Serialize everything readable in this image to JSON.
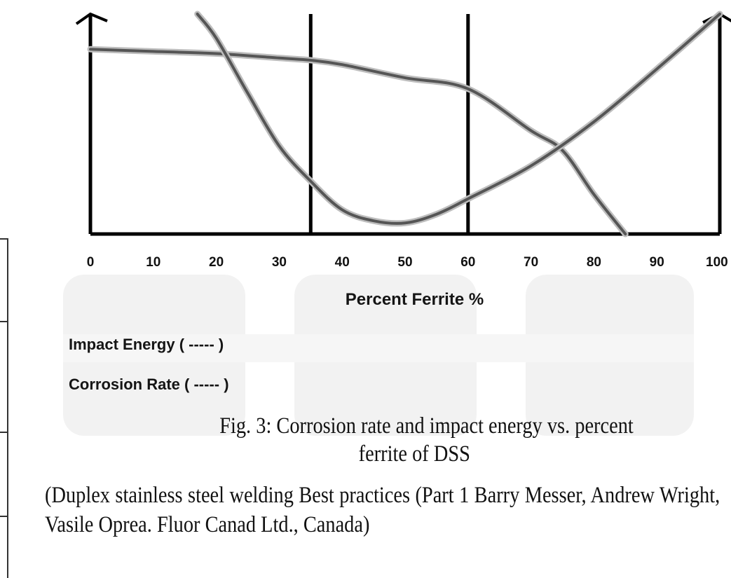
{
  "chart_data": {
    "type": "line",
    "title": "",
    "xlabel": "Percent Ferrite %",
    "ylabel": "",
    "xlim": [
      0,
      100
    ],
    "ylim": [
      0,
      100
    ],
    "x_ticks": [
      "0",
      "10",
      "20",
      "30",
      "40",
      "50",
      "60",
      "70",
      "80",
      "90",
      "100"
    ],
    "grid": false,
    "reference_lines_x": [
      35,
      60
    ],
    "series": [
      {
        "name": "Impact Energy ( ----- )",
        "x": [
          0,
          10,
          20,
          30,
          35,
          40,
          50,
          60,
          70,
          75,
          80,
          85
        ],
        "y": [
          84,
          83,
          82,
          80,
          79,
          77,
          71,
          66,
          47,
          38,
          18,
          0
        ]
      },
      {
        "name": "Corrosion Rate ( ----- )",
        "x": [
          17,
          20,
          25,
          30,
          35,
          40,
          45,
          50,
          55,
          60,
          70,
          80,
          90,
          100
        ],
        "y": [
          100,
          89,
          64,
          40,
          24,
          11,
          6,
          5,
          9,
          16,
          31,
          51,
          75,
          100
        ]
      }
    ],
    "legend": [
      {
        "label": "Impact Energy ( ----- )"
      },
      {
        "label": "Corrosion Rate ( ----- )"
      }
    ],
    "legend_placement": "bottom-left",
    "line_color": "#555555"
  },
  "caption": {
    "line1": "Fig. 3: Corrosion rate and impact energy vs. percent",
    "line2": "ferrite of DSS"
  },
  "source": {
    "text": "(Duplex stainless steel welding Best practices (Part 1 Barry Messer, Andrew Wright, Vasile Oprea. Fluor Canad Ltd., Canada)"
  }
}
